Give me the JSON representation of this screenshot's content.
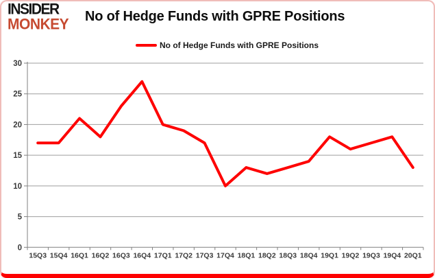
{
  "page": {
    "background": "#ffffff",
    "accent_red": "#fe0000",
    "border_pink": "#f0bcb9"
  },
  "logo": {
    "line1": "INSIDER",
    "line2": "MONKEY",
    "line1_color": "#141414",
    "line2_color": "#c64a31"
  },
  "header": {
    "title": "No of Hedge Funds with GPRE Positions"
  },
  "legend": {
    "label": "No of Hedge Funds with GPRE Positions",
    "line_color": "#fe0000"
  },
  "chart_data": {
    "type": "line",
    "title": "No of Hedge Funds with GPRE Positions",
    "xlabel": "",
    "ylabel": "",
    "categories": [
      "15Q3",
      "15Q4",
      "16Q1",
      "16Q2",
      "16Q3",
      "16Q4",
      "17Q1",
      "17Q2",
      "17Q3",
      "17Q4",
      "18Q1",
      "18Q2",
      "18Q3",
      "18Q4",
      "19Q1",
      "19Q2",
      "19Q3",
      "19Q4",
      "20Q1"
    ],
    "series": [
      {
        "name": "No of Hedge Funds with GPRE Positions",
        "color": "#fe0000",
        "values": [
          17,
          17,
          21,
          18,
          23,
          27,
          20,
          19,
          17,
          10,
          13,
          12,
          13,
          14,
          18,
          16,
          17,
          18,
          13
        ]
      }
    ],
    "ylim": [
      0,
      30
    ],
    "y_ticks": [
      0,
      5,
      10,
      15,
      20,
      25,
      30
    ],
    "grid": true,
    "grid_color": "#9e9e9e",
    "axis_color": "#808080",
    "tick_label_color": "#3a3a3a",
    "legend_position": "top-center"
  }
}
